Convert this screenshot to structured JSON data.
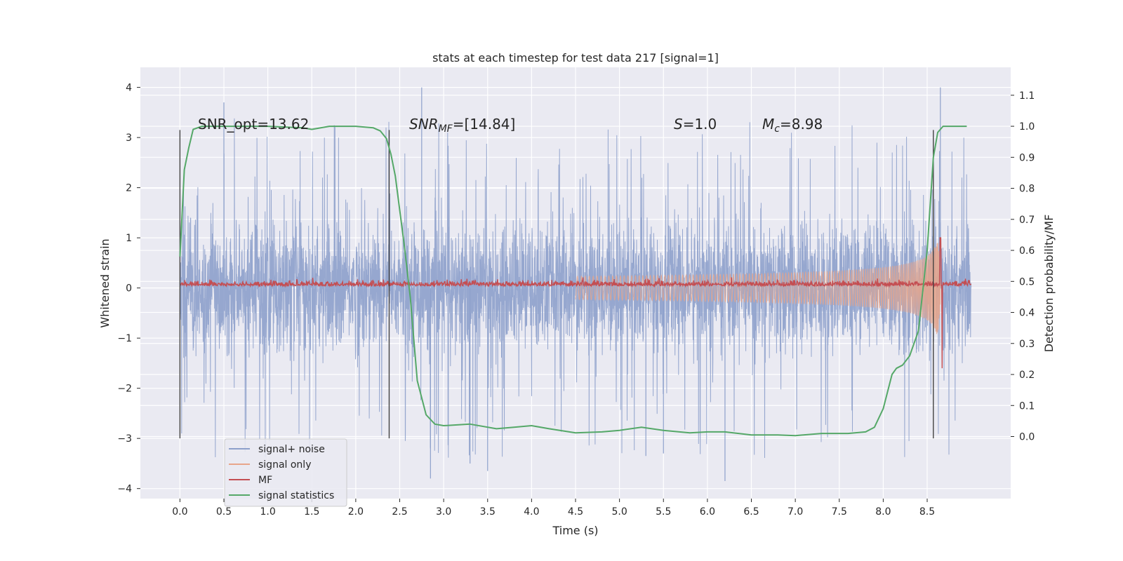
{
  "chart_data": {
    "type": "line",
    "title": "stats at each timestep for test data 217 [signal=1]",
    "xlabel": "Time (s)",
    "ylabel": "Whitened strain",
    "y2label": "Detection probability/MF",
    "xlim": [
      -0.45,
      9.45
    ],
    "ylim": [
      -4.2,
      4.4
    ],
    "y2lim": [
      -0.2,
      1.19
    ],
    "xticks": [
      "0.0",
      "0.5",
      "1.0",
      "1.5",
      "2.0",
      "2.5",
      "3.0",
      "3.5",
      "4.0",
      "4.5",
      "5.0",
      "5.5",
      "6.0",
      "6.5",
      "7.0",
      "7.5",
      "8.0",
      "8.5"
    ],
    "yticks": [
      "−4",
      "−3",
      "−2",
      "−1",
      "0",
      "1",
      "2",
      "3",
      "4"
    ],
    "y2ticks": [
      "0.0",
      "0.1",
      "0.2",
      "0.3",
      "0.4",
      "0.5",
      "0.6",
      "0.7",
      "0.8",
      "0.9",
      "1.0",
      "1.1"
    ],
    "grid": true,
    "legend_position": "lower-left",
    "annotations": {
      "snr_opt": "SNR_opt=13.62",
      "snr_mf_label": "SNR",
      "snr_mf_sub": "MF",
      "snr_mf_value": "=[14.84]",
      "s_label": "S",
      "s_value": "=1.0",
      "mc_label": "M",
      "mc_sub": "c",
      "mc_value": "=8.98"
    },
    "vlines_x": [
      0.0,
      2.38,
      8.57
    ],
    "vlines_yrange": [
      -3.0,
      3.15
    ],
    "series": [
      {
        "name": "signal+ noise",
        "color": "#8da0cb",
        "axis": "left",
        "style": "noise",
        "x_range": [
          0.0,
          9.0
        ],
        "envelope_typical": 1.5,
        "envelope_peak": 3.8,
        "extremes": [
          [
            0.5,
            3.7
          ],
          [
            2.75,
            4.0
          ],
          [
            8.65,
            4.0
          ],
          [
            6.2,
            -3.85
          ],
          [
            2.85,
            -3.8
          ],
          [
            3.3,
            -3.5
          ],
          [
            3.5,
            -3.65
          ],
          [
            5.3,
            -3.35
          ],
          [
            5.5,
            -3.3
          ]
        ]
      },
      {
        "name": "signal only",
        "color": "#e8a58a",
        "axis": "left",
        "style": "chirp",
        "x_range": [
          4.5,
          8.65
        ],
        "amplitude_start": 0.03,
        "amplitude_peak": 1.3,
        "peak_x": 8.62
      },
      {
        "name": "MF",
        "color": "#c44e52",
        "axis": "left",
        "style": "mf",
        "x_range": [
          0.0,
          9.0
        ],
        "baseline": 0.07,
        "noise_level": 0.08,
        "spike": [
          8.65,
          1.0
        ],
        "dip": [
          8.66,
          -1.6
        ]
      },
      {
        "name": "signal statistics",
        "color": "#55a868",
        "axis": "right",
        "style": "line",
        "x": [
          0.0,
          0.05,
          0.1,
          0.15,
          0.25,
          0.5,
          1.0,
          1.4,
          1.5,
          1.7,
          2.0,
          2.2,
          2.28,
          2.35,
          2.4,
          2.45,
          2.55,
          2.62,
          2.7,
          2.8,
          2.9,
          3.0,
          3.3,
          3.6,
          3.8,
          4.0,
          4.2,
          4.5,
          4.8,
          5.0,
          5.25,
          5.5,
          5.8,
          6.0,
          6.2,
          6.5,
          6.8,
          7.0,
          7.3,
          7.6,
          7.8,
          7.9,
          8.0,
          8.1,
          8.15,
          8.22,
          8.3,
          8.4,
          8.5,
          8.57,
          8.62,
          8.68,
          8.75,
          8.85,
          8.95
        ],
        "values": [
          0.58,
          0.86,
          0.93,
          0.99,
          1.0,
          1.0,
          1.0,
          0.995,
          0.99,
          1.0,
          1.0,
          0.995,
          0.985,
          0.96,
          0.91,
          0.84,
          0.62,
          0.45,
          0.18,
          0.07,
          0.04,
          0.035,
          0.04,
          0.025,
          0.03,
          0.035,
          0.025,
          0.012,
          0.015,
          0.02,
          0.03,
          0.02,
          0.012,
          0.015,
          0.015,
          0.005,
          0.005,
          0.003,
          0.01,
          0.01,
          0.015,
          0.03,
          0.09,
          0.2,
          0.22,
          0.23,
          0.26,
          0.34,
          0.6,
          0.9,
          0.98,
          1.0,
          1.0,
          1.0,
          1.0
        ]
      }
    ]
  }
}
